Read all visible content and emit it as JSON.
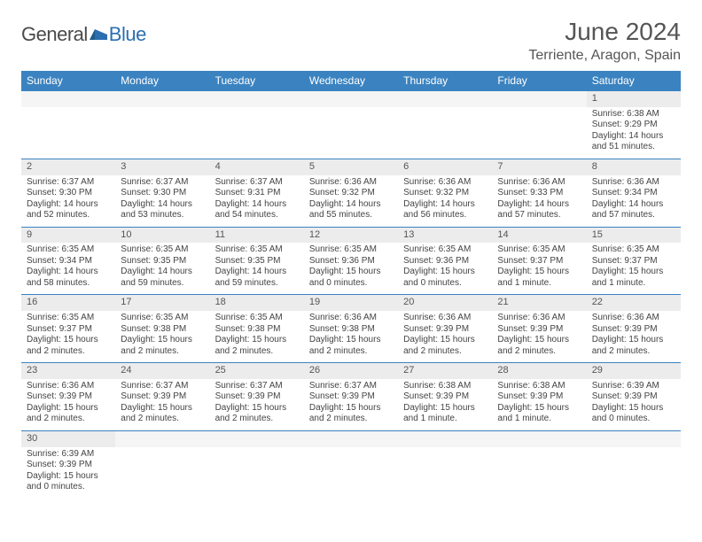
{
  "brand": {
    "part1": "General",
    "part2": "Blue"
  },
  "title": "June 2024",
  "location": "Terriente, Aragon, Spain",
  "colors": {
    "header_bg": "#3b83c0",
    "header_text": "#ffffff",
    "daynum_bg": "#ececec",
    "border": "#3b83c0",
    "brand_blue": "#2b6fb0",
    "text": "#444444"
  },
  "weekdays": [
    "Sunday",
    "Monday",
    "Tuesday",
    "Wednesday",
    "Thursday",
    "Friday",
    "Saturday"
  ],
  "weeks": [
    [
      null,
      null,
      null,
      null,
      null,
      null,
      {
        "n": "1",
        "sr": "6:38 AM",
        "ss": "9:29 PM",
        "dl": "14 hours and 51 minutes."
      }
    ],
    [
      {
        "n": "2",
        "sr": "6:37 AM",
        "ss": "9:30 PM",
        "dl": "14 hours and 52 minutes."
      },
      {
        "n": "3",
        "sr": "6:37 AM",
        "ss": "9:30 PM",
        "dl": "14 hours and 53 minutes."
      },
      {
        "n": "4",
        "sr": "6:37 AM",
        "ss": "9:31 PM",
        "dl": "14 hours and 54 minutes."
      },
      {
        "n": "5",
        "sr": "6:36 AM",
        "ss": "9:32 PM",
        "dl": "14 hours and 55 minutes."
      },
      {
        "n": "6",
        "sr": "6:36 AM",
        "ss": "9:32 PM",
        "dl": "14 hours and 56 minutes."
      },
      {
        "n": "7",
        "sr": "6:36 AM",
        "ss": "9:33 PM",
        "dl": "14 hours and 57 minutes."
      },
      {
        "n": "8",
        "sr": "6:36 AM",
        "ss": "9:34 PM",
        "dl": "14 hours and 57 minutes."
      }
    ],
    [
      {
        "n": "9",
        "sr": "6:35 AM",
        "ss": "9:34 PM",
        "dl": "14 hours and 58 minutes."
      },
      {
        "n": "10",
        "sr": "6:35 AM",
        "ss": "9:35 PM",
        "dl": "14 hours and 59 minutes."
      },
      {
        "n": "11",
        "sr": "6:35 AM",
        "ss": "9:35 PM",
        "dl": "14 hours and 59 minutes."
      },
      {
        "n": "12",
        "sr": "6:35 AM",
        "ss": "9:36 PM",
        "dl": "15 hours and 0 minutes."
      },
      {
        "n": "13",
        "sr": "6:35 AM",
        "ss": "9:36 PM",
        "dl": "15 hours and 0 minutes."
      },
      {
        "n": "14",
        "sr": "6:35 AM",
        "ss": "9:37 PM",
        "dl": "15 hours and 1 minute."
      },
      {
        "n": "15",
        "sr": "6:35 AM",
        "ss": "9:37 PM",
        "dl": "15 hours and 1 minute."
      }
    ],
    [
      {
        "n": "16",
        "sr": "6:35 AM",
        "ss": "9:37 PM",
        "dl": "15 hours and 2 minutes."
      },
      {
        "n": "17",
        "sr": "6:35 AM",
        "ss": "9:38 PM",
        "dl": "15 hours and 2 minutes."
      },
      {
        "n": "18",
        "sr": "6:35 AM",
        "ss": "9:38 PM",
        "dl": "15 hours and 2 minutes."
      },
      {
        "n": "19",
        "sr": "6:36 AM",
        "ss": "9:38 PM",
        "dl": "15 hours and 2 minutes."
      },
      {
        "n": "20",
        "sr": "6:36 AM",
        "ss": "9:39 PM",
        "dl": "15 hours and 2 minutes."
      },
      {
        "n": "21",
        "sr": "6:36 AM",
        "ss": "9:39 PM",
        "dl": "15 hours and 2 minutes."
      },
      {
        "n": "22",
        "sr": "6:36 AM",
        "ss": "9:39 PM",
        "dl": "15 hours and 2 minutes."
      }
    ],
    [
      {
        "n": "23",
        "sr": "6:36 AM",
        "ss": "9:39 PM",
        "dl": "15 hours and 2 minutes."
      },
      {
        "n": "24",
        "sr": "6:37 AM",
        "ss": "9:39 PM",
        "dl": "15 hours and 2 minutes."
      },
      {
        "n": "25",
        "sr": "6:37 AM",
        "ss": "9:39 PM",
        "dl": "15 hours and 2 minutes."
      },
      {
        "n": "26",
        "sr": "6:37 AM",
        "ss": "9:39 PM",
        "dl": "15 hours and 2 minutes."
      },
      {
        "n": "27",
        "sr": "6:38 AM",
        "ss": "9:39 PM",
        "dl": "15 hours and 1 minute."
      },
      {
        "n": "28",
        "sr": "6:38 AM",
        "ss": "9:39 PM",
        "dl": "15 hours and 1 minute."
      },
      {
        "n": "29",
        "sr": "6:39 AM",
        "ss": "9:39 PM",
        "dl": "15 hours and 0 minutes."
      }
    ],
    [
      {
        "n": "30",
        "sr": "6:39 AM",
        "ss": "9:39 PM",
        "dl": "15 hours and 0 minutes."
      },
      null,
      null,
      null,
      null,
      null,
      null
    ]
  ],
  "labels": {
    "sunrise": "Sunrise:",
    "sunset": "Sunset:",
    "daylight": "Daylight:"
  }
}
